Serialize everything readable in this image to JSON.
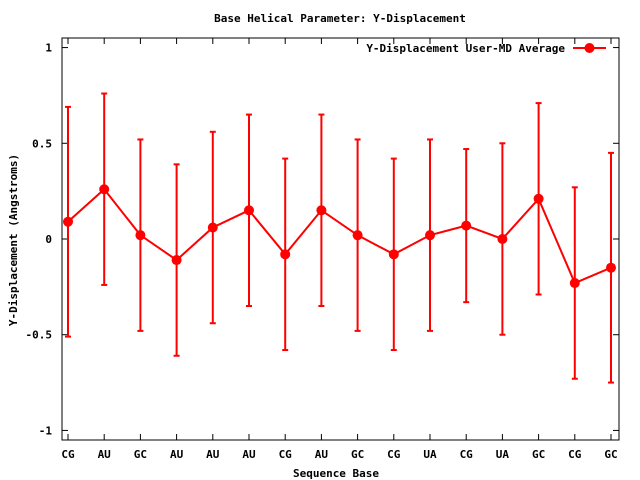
{
  "chart_data": {
    "type": "line",
    "title": "Base  Helical Parameter: Y-Displacement",
    "xlabel": "Sequence Base",
    "ylabel": "Y-Displacement (Angstroms)",
    "ylim": [
      -1.05,
      1.05
    ],
    "yticks": [
      1,
      0.5,
      0,
      -0.5,
      -1
    ],
    "ytick_labels": [
      "1",
      "0.5",
      "0",
      "-0.5",
      "-1"
    ],
    "categories": [
      "CG",
      "AU",
      "GC",
      "AU",
      "AU",
      "AU",
      "CG",
      "AU",
      "GC",
      "CG",
      "UA",
      "CG",
      "UA",
      "GC",
      "CG",
      "GC"
    ],
    "legend_position": "top-right",
    "grid": false,
    "series": [
      {
        "name": "Y-Displacement User-MD Average",
        "color": "#ff0000",
        "values": [
          0.09,
          0.26,
          0.02,
          -0.11,
          0.06,
          0.15,
          -0.08,
          0.15,
          0.02,
          -0.08,
          0.02,
          0.07,
          0.0,
          0.21,
          -0.23,
          -0.15
        ],
        "err_low": [
          -0.51,
          -0.24,
          -0.48,
          -0.61,
          -0.44,
          -0.35,
          -0.58,
          -0.35,
          -0.48,
          -0.58,
          -0.48,
          -0.33,
          -0.5,
          -0.29,
          -0.73,
          -0.75
        ],
        "err_high": [
          0.69,
          0.76,
          0.52,
          0.39,
          0.56,
          0.65,
          0.42,
          0.65,
          0.52,
          0.42,
          0.52,
          0.47,
          0.5,
          0.71,
          0.27,
          0.45
        ]
      }
    ]
  }
}
